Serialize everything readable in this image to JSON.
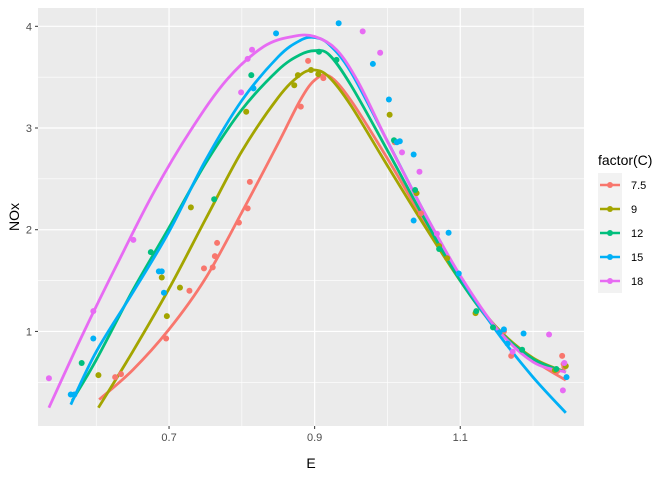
{
  "chart_data": {
    "type": "scatter",
    "xlabel": "E",
    "ylabel": "NOx",
    "xlim": [
      0.52,
      1.27
    ],
    "ylim": [
      0.07,
      4.18
    ],
    "xticks": [
      0.7,
      0.9,
      1.1
    ],
    "xtick_labels": [
      "0.7",
      "0.9",
      "1.1"
    ],
    "yticks": [
      1,
      2,
      3,
      4
    ],
    "ytick_labels": [
      "1",
      "2",
      "3",
      "4"
    ],
    "grid": true,
    "legend": {
      "title": "factor(C)",
      "position": "right"
    },
    "overlay": "smooth",
    "series": [
      {
        "name": "7.5",
        "color": "#F8766D",
        "points": [
          [
            0.626,
            0.55
          ],
          [
            0.634,
            0.58
          ],
          [
            0.696,
            0.93
          ],
          [
            0.728,
            1.4
          ],
          [
            0.748,
            1.62
          ],
          [
            0.76,
            1.63
          ],
          [
            0.763,
            1.74
          ],
          [
            0.766,
            1.87
          ],
          [
            0.796,
            2.07
          ],
          [
            0.808,
            2.21
          ],
          [
            0.811,
            2.47
          ],
          [
            0.881,
            3.21
          ],
          [
            0.891,
            3.66
          ],
          [
            0.912,
            3.49
          ],
          [
            1.01,
            2.86
          ],
          [
            1.046,
            2.16
          ],
          [
            1.16,
            1.0
          ],
          [
            1.17,
            0.76
          ],
          [
            1.233,
            0.61
          ],
          [
            1.24,
            0.76
          ],
          [
            1.242,
            0.68
          ],
          [
            1.243,
            0.65
          ]
        ],
        "curve": [
          [
            0.604,
            0.33
          ],
          [
            0.65,
            0.62
          ],
          [
            0.7,
            1.02
          ],
          [
            0.75,
            1.52
          ],
          [
            0.8,
            2.17
          ],
          [
            0.85,
            2.85
          ],
          [
            0.88,
            3.27
          ],
          [
            0.9,
            3.47
          ],
          [
            0.92,
            3.51
          ],
          [
            0.95,
            3.27
          ],
          [
            1.0,
            2.7
          ],
          [
            1.05,
            2.09
          ],
          [
            1.1,
            1.5
          ],
          [
            1.15,
            1.02
          ],
          [
            1.2,
            0.72
          ],
          [
            1.245,
            0.52
          ]
        ]
      },
      {
        "name": "9",
        "color": "#A3A500",
        "points": [
          [
            0.603,
            0.57
          ],
          [
            0.69,
            1.53
          ],
          [
            0.697,
            1.15
          ],
          [
            0.715,
            1.43
          ],
          [
            0.73,
            2.22
          ],
          [
            0.806,
            3.16
          ],
          [
            0.872,
            3.42
          ],
          [
            0.877,
            3.52
          ],
          [
            0.895,
            3.57
          ],
          [
            0.905,
            3.53
          ],
          [
            1.003,
            3.13
          ],
          [
            1.04,
            2.36
          ],
          [
            1.071,
            1.84
          ],
          [
            1.082,
            1.72
          ],
          [
            1.121,
            1.18
          ],
          [
            1.23,
            0.62
          ],
          [
            1.245,
            0.66
          ]
        ],
        "curve": [
          [
            0.603,
            0.25
          ],
          [
            0.65,
            0.8
          ],
          [
            0.7,
            1.42
          ],
          [
            0.75,
            2.1
          ],
          [
            0.8,
            2.77
          ],
          [
            0.85,
            3.3
          ],
          [
            0.88,
            3.52
          ],
          [
            0.9,
            3.57
          ],
          [
            0.92,
            3.5
          ],
          [
            0.95,
            3.22
          ],
          [
            1.0,
            2.63
          ],
          [
            1.05,
            2.05
          ],
          [
            1.1,
            1.5
          ],
          [
            1.15,
            1.04
          ],
          [
            1.2,
            0.74
          ],
          [
            1.245,
            0.6
          ]
        ]
      },
      {
        "name": "12",
        "color": "#00BF7D",
        "points": [
          [
            0.58,
            0.69
          ],
          [
            0.675,
            1.78
          ],
          [
            0.762,
            2.3
          ],
          [
            0.813,
            3.52
          ],
          [
            0.906,
            3.75
          ],
          [
            0.93,
            3.67
          ],
          [
            1.009,
            2.88
          ],
          [
            1.038,
            2.39
          ],
          [
            1.071,
            1.81
          ],
          [
            1.122,
            1.2
          ],
          [
            1.145,
            1.04
          ],
          [
            1.185,
            0.82
          ],
          [
            1.232,
            0.63
          ]
        ],
        "curve": [
          [
            0.567,
            0.32
          ],
          [
            0.6,
            0.72
          ],
          [
            0.65,
            1.4
          ],
          [
            0.7,
            2.02
          ],
          [
            0.75,
            2.65
          ],
          [
            0.8,
            3.18
          ],
          [
            0.85,
            3.57
          ],
          [
            0.88,
            3.72
          ],
          [
            0.9,
            3.76
          ],
          [
            0.92,
            3.72
          ],
          [
            0.95,
            3.42
          ],
          [
            1.0,
            2.78
          ],
          [
            1.05,
            2.12
          ],
          [
            1.1,
            1.5
          ],
          [
            1.15,
            1.03
          ],
          [
            1.2,
            0.73
          ],
          [
            1.245,
            0.6
          ]
        ]
      },
      {
        "name": "15",
        "color": "#00B0F6",
        "points": [
          [
            0.565,
            0.38
          ],
          [
            0.57,
            0.38
          ],
          [
            0.596,
            0.93
          ],
          [
            0.686,
            1.59
          ],
          [
            0.69,
            1.59
          ],
          [
            0.693,
            1.38
          ],
          [
            0.816,
            3.39
          ],
          [
            0.847,
            3.93
          ],
          [
            0.933,
            4.03
          ],
          [
            0.98,
            3.63
          ],
          [
            1.002,
            3.28
          ],
          [
            1.013,
            2.86
          ],
          [
            1.017,
            2.87
          ],
          [
            1.036,
            2.74
          ],
          [
            1.036,
            2.09
          ],
          [
            1.084,
            1.97
          ],
          [
            1.098,
            1.57
          ],
          [
            1.154,
            0.99
          ],
          [
            1.16,
            1.02
          ],
          [
            1.165,
            0.88
          ],
          [
            1.187,
            0.98
          ],
          [
            1.246,
            0.55
          ]
        ],
        "curve": [
          [
            0.565,
            0.28
          ],
          [
            0.6,
            0.8
          ],
          [
            0.65,
            1.38
          ],
          [
            0.7,
            1.98
          ],
          [
            0.75,
            2.68
          ],
          [
            0.8,
            3.27
          ],
          [
            0.85,
            3.7
          ],
          [
            0.88,
            3.86
          ],
          [
            0.9,
            3.89
          ],
          [
            0.92,
            3.82
          ],
          [
            0.95,
            3.55
          ],
          [
            1.0,
            2.87
          ],
          [
            1.05,
            2.18
          ],
          [
            1.1,
            1.54
          ],
          [
            1.15,
            1.0
          ],
          [
            1.2,
            0.55
          ],
          [
            1.245,
            0.2
          ]
        ]
      },
      {
        "name": "18",
        "color": "#E76BF3",
        "points": [
          [
            0.535,
            0.54
          ],
          [
            0.596,
            1.2
          ],
          [
            0.651,
            1.9
          ],
          [
            0.799,
            3.35
          ],
          [
            0.808,
            3.68
          ],
          [
            0.814,
            3.77
          ],
          [
            0.966,
            3.95
          ],
          [
            0.99,
            3.74
          ],
          [
            1.02,
            2.76
          ],
          [
            1.044,
            2.57
          ],
          [
            1.068,
            1.96
          ],
          [
            1.172,
            0.8
          ],
          [
            1.222,
            0.97
          ],
          [
            1.241,
            0.42
          ],
          [
            1.243,
            0.69
          ]
        ],
        "curve": [
          [
            0.535,
            0.25
          ],
          [
            0.58,
            0.95
          ],
          [
            0.63,
            1.68
          ],
          [
            0.68,
            2.38
          ],
          [
            0.73,
            2.98
          ],
          [
            0.78,
            3.48
          ],
          [
            0.83,
            3.8
          ],
          [
            0.87,
            3.9
          ],
          [
            0.9,
            3.9
          ],
          [
            0.93,
            3.77
          ],
          [
            0.96,
            3.45
          ],
          [
            1.0,
            2.87
          ],
          [
            1.05,
            2.18
          ],
          [
            1.1,
            1.55
          ],
          [
            1.15,
            1.03
          ],
          [
            1.2,
            0.7
          ],
          [
            1.245,
            0.6
          ]
        ]
      }
    ]
  }
}
